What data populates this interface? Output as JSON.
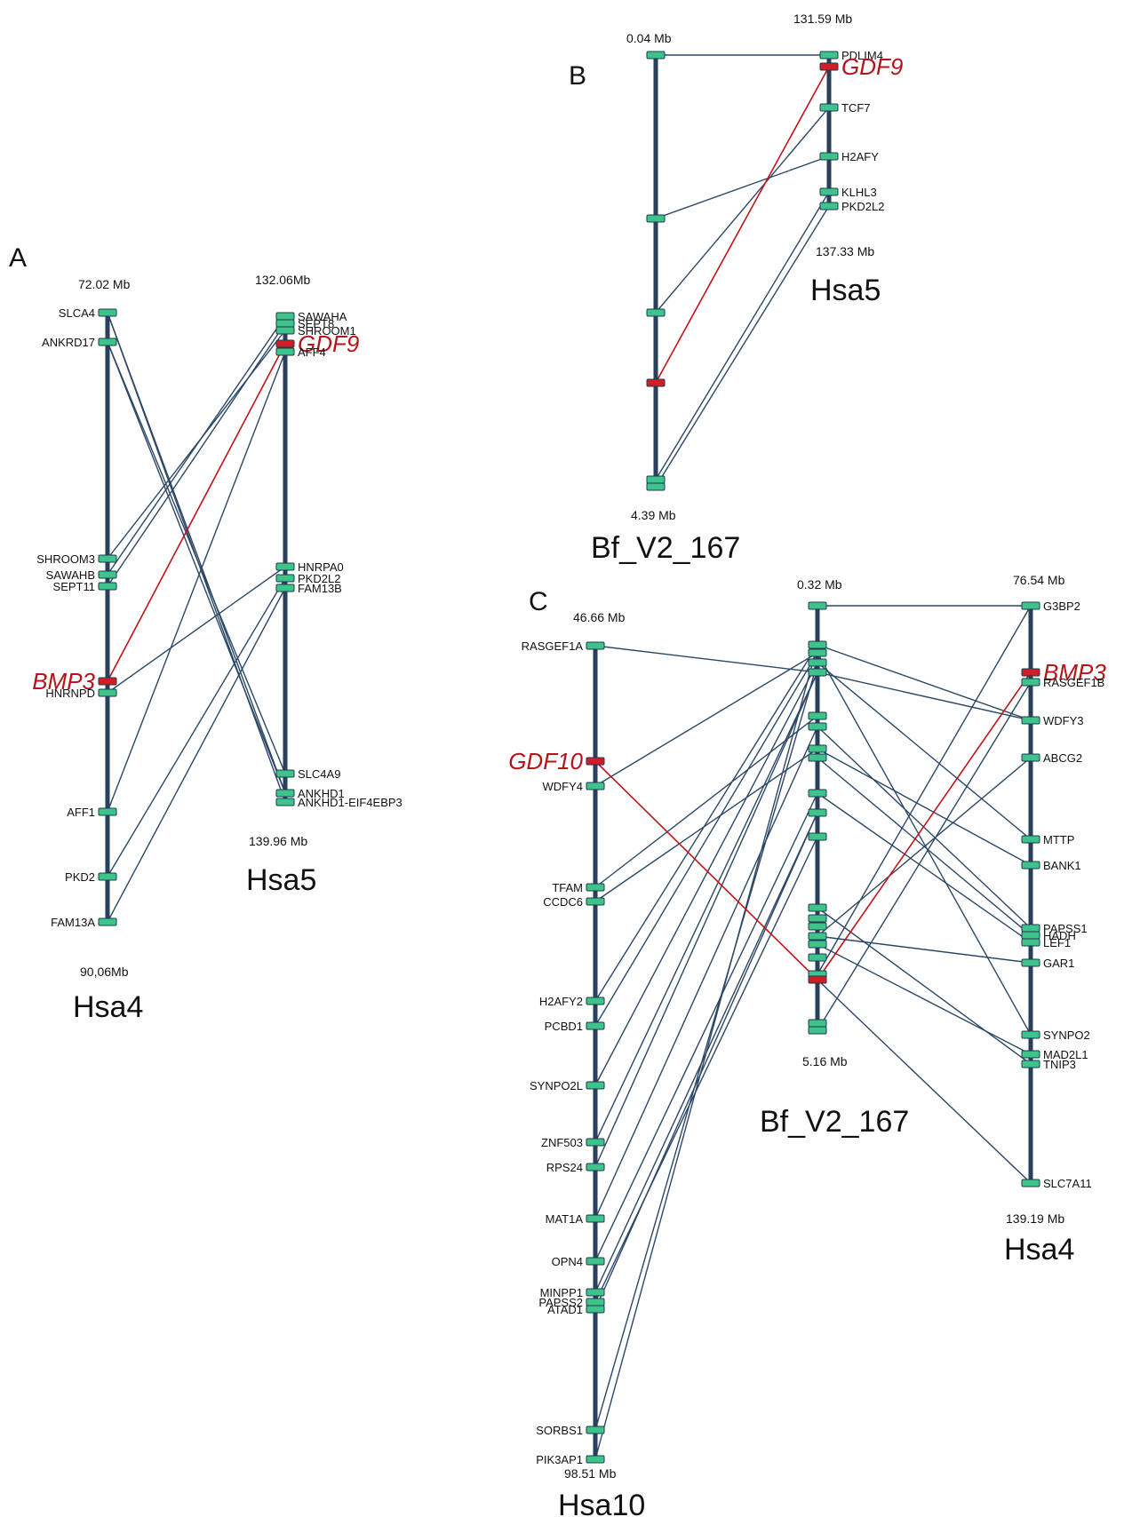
{
  "panels": [
    {
      "letter": "A",
      "chromosomes": [
        {
          "name": "Hsa4",
          "top": "72.02 Mb",
          "bottom": "90,06Mb",
          "genes": [
            "SLCA4",
            "ANKRD17",
            "SHROOM3",
            "SAWAHB",
            "SEPT11",
            "BMP3",
            "HNRNPD",
            "AFF1",
            "PKD2",
            "FAM13A"
          ]
        },
        {
          "name": "Hsa5",
          "top": "132.06Mb",
          "bottom": "139.96 Mb",
          "genes": [
            "SAWAHA",
            "SEPT8",
            "SHROOM1",
            "GDF9",
            "AFF4",
            "HNRPA0",
            "PKD2L2",
            "FAM13B",
            "SLC4A9",
            "ANKHD1",
            "ANKHD1-EIF4EBP3"
          ]
        }
      ],
      "highlighted": [
        "BMP3",
        "GDF9"
      ]
    },
    {
      "letter": "B",
      "chromosomes": [
        {
          "name": "Bf_V2_167",
          "top": "0.04 Mb",
          "bottom": "4.39 Mb",
          "genes": []
        },
        {
          "name": "Hsa5",
          "top": "131.59 Mb",
          "bottom": "137.33 Mb",
          "genes": [
            "PDLIM4",
            "GDF9",
            "TCF7",
            "H2AFY",
            "KLHL3",
            "PKD2L2"
          ]
        }
      ],
      "highlighted": [
        "GDF9"
      ]
    },
    {
      "letter": "C",
      "chromosomes": [
        {
          "name": "Hsa10",
          "top": "46.66 Mb",
          "bottom": "98.51 Mb",
          "genes": [
            "RASGEF1A",
            "GDF10",
            "WDFY4",
            "TFAM",
            "CCDC6",
            "H2AFY2",
            "PCBD1",
            "SYNPO2L",
            "ZNF503",
            "RPS24",
            "MAT1A",
            "OPN4",
            "MINPP1",
            "PAPSS2",
            "ATAD1",
            "SORBS1",
            "PIK3AP1"
          ]
        },
        {
          "name": "Bf_V2_167",
          "top": "0.32 Mb",
          "bottom": "5.16 Mb",
          "genes": []
        },
        {
          "name": "Hsa4",
          "top": "76.54 Mb",
          "bottom": "139.19 Mb",
          "genes": [
            "G3BP2",
            "BMP3",
            "RASGEF1B",
            "WDFY3",
            "ABCG2",
            "MTTP",
            "BANK1",
            "PAPSS1",
            "HADH",
            "LEF1",
            "GAR1",
            "SYNPO2",
            "MAD2L1",
            "TNIP3",
            "SLC7A11"
          ]
        }
      ],
      "highlighted": [
        "GDF10",
        "BMP3"
      ]
    }
  ],
  "colors": {
    "chromosome": "#2a3f5c",
    "link": "#2c4766",
    "highlight": "#c0141a",
    "marker": "#3ec48a"
  }
}
